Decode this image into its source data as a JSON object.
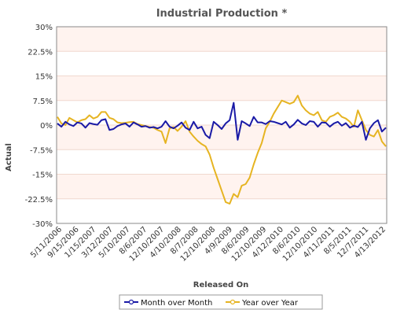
{
  "chart_data": {
    "type": "line",
    "title": "Industrial Production *",
    "xlabel": "Released On",
    "ylabel": "Actual",
    "ylim": [
      -30,
      30
    ],
    "yticks": [
      "30%",
      "22.5%",
      "15%",
      "7.5%",
      "0%",
      "-7.5%",
      "-15%",
      "-22.5%",
      "-30%"
    ],
    "ytick_values": [
      30,
      22.5,
      15,
      7.5,
      0,
      -7.5,
      -15,
      -22.5,
      -30
    ],
    "x_tick_labels": [
      "5/11/2006",
      "9/15/2006",
      "1/15/2007",
      "3/12/2007",
      "5/10/2007",
      "8/6/2007",
      "12/10/2007",
      "4/10/2008",
      "8/7/2008",
      "12/10/2008",
      "4/9/2009",
      "8/6/2009",
      "12/10/2009",
      "4/12/2010",
      "8/6/2010",
      "12/10/2010",
      "4/11/2011",
      "8/5/2011",
      "12/7/2011",
      "4/13/2012"
    ],
    "legend_placement": "bottom",
    "series": [
      {
        "name": "Month over Month",
        "color": "#1a1aa6",
        "values": [
          0.5,
          -0.5,
          1.0,
          0.2,
          -0.3,
          0.8,
          0.5,
          -0.8,
          0.6,
          0.3,
          0.1,
          1.5,
          1.8,
          -1.5,
          -1.2,
          -0.3,
          0.2,
          0.5,
          -0.5,
          0.8,
          0.2,
          -0.5,
          -0.3,
          -0.8,
          -0.6,
          -1.0,
          -0.5,
          1.2,
          -0.5,
          -1.0,
          -0.2,
          0.8,
          -0.8,
          -1.5,
          1.0,
          -1.0,
          -0.5,
          -3.0,
          -4.0,
          1.0,
          0.0,
          -1.2,
          0.5,
          1.5,
          6.8,
          -4.5,
          1.2,
          0.5,
          -0.3,
          2.5,
          0.8,
          0.8,
          0.3,
          1.2,
          1.0,
          0.6,
          0.2,
          1.0,
          -0.8,
          0.2,
          1.6,
          0.5,
          0.0,
          1.2,
          1.0,
          -0.5,
          0.8,
          0.7,
          -0.5,
          0.5,
          1.0,
          -0.2,
          0.6,
          -0.8,
          -0.2,
          -0.6,
          1.0,
          -4.5,
          -1.0,
          0.6,
          1.5,
          -2.0,
          -0.8
        ]
      },
      {
        "name": "Year over Year",
        "color": "#e6b422",
        "values": [
          2.5,
          0.5,
          0.0,
          2.2,
          1.5,
          0.8,
          1.5,
          1.8,
          3.0,
          2.0,
          2.5,
          4.0,
          4.0,
          2.2,
          1.8,
          0.8,
          0.6,
          0.7,
          0.9,
          1.0,
          0.3,
          0.0,
          -0.3,
          -0.6,
          -0.8,
          -1.5,
          -2.0,
          -5.5,
          -1.0,
          -0.6,
          -1.8,
          -0.5,
          1.2,
          -2.0,
          -3.5,
          -4.8,
          -5.8,
          -6.5,
          -9.0,
          -13.0,
          -16.5,
          -20.0,
          -23.5,
          -24.0,
          -21.0,
          -22.0,
          -18.5,
          -18.0,
          -16.0,
          -12.0,
          -8.5,
          -5.5,
          -1.0,
          1.0,
          3.5,
          5.5,
          7.5,
          7.0,
          6.5,
          7.0,
          9.0,
          6.0,
          4.5,
          3.5,
          3.0,
          4.0,
          1.5,
          1.0,
          2.5,
          3.0,
          3.8,
          2.5,
          2.0,
          1.0,
          -0.5,
          4.5,
          1.5,
          -1.5,
          -3.0,
          -3.5,
          -1.5,
          -5.0,
          -6.5
        ]
      }
    ]
  }
}
